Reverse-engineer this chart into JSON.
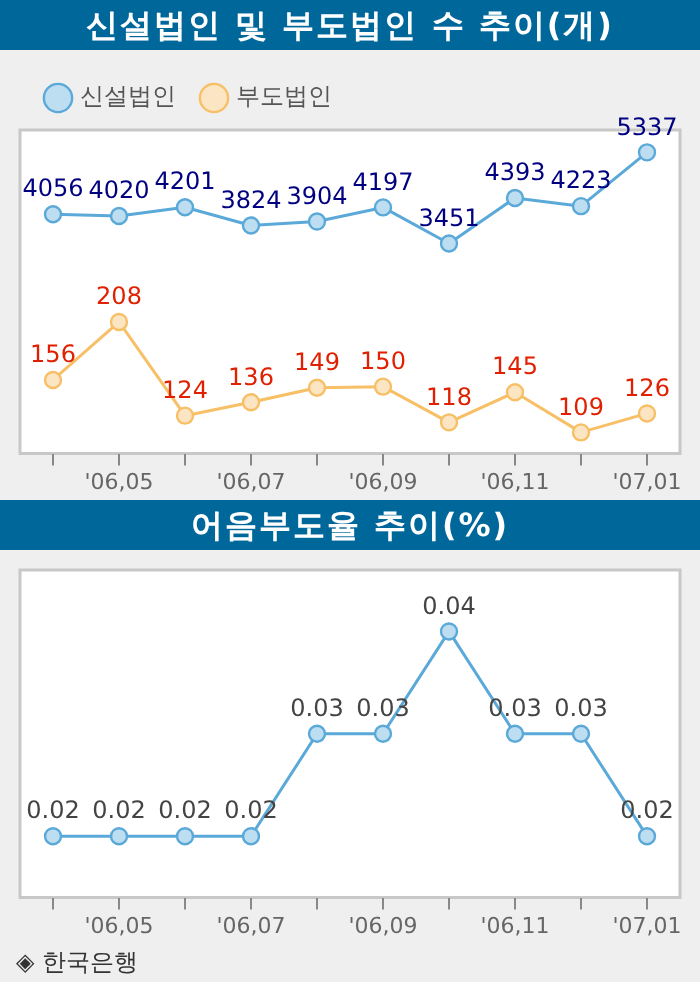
{
  "chart_data": [
    {
      "type": "line",
      "title": "신설법인 및 부도법인 수 추이(개)",
      "categories": [
        null,
        "'06,05",
        null,
        "'06,07",
        null,
        "'06,09",
        null,
        "'06,11",
        null,
        "'07,01"
      ],
      "series": [
        {
          "name": "신설법인",
          "color": "#5aa9d9",
          "values": [
            4056,
            4020,
            4201,
            3824,
            3904,
            4197,
            3451,
            4393,
            4223,
            5337
          ]
        },
        {
          "name": "부도법인",
          "color": "#f7bf66",
          "axis": "y2",
          "values": [
            156,
            208,
            124,
            136,
            149,
            150,
            118,
            145,
            109,
            126
          ]
        }
      ],
      "ylim": [
        -900,
        5800
      ],
      "y2lim": [
        90,
        380
      ],
      "data_labels": true,
      "legend": "top left",
      "marker": "circle",
      "grid": false,
      "tick_labels": "x"
    },
    {
      "type": "line",
      "title": "어음부도율 추이(%)",
      "categories": [
        null,
        "'06,05",
        null,
        "'06,07",
        null,
        "'06,09",
        null,
        "'06,11",
        null,
        "'07,01"
      ],
      "series": [
        {
          "color": "#5aa9d9",
          "values": [
            0.02,
            0.02,
            0.02,
            0.02,
            0.03,
            0.03,
            0.04,
            0.03,
            0.03,
            0.02
          ]
        }
      ],
      "data_labels": true,
      "legend": false,
      "marker": "circle",
      "grid": false,
      "tick_labels": "x",
      "annotations": [
        "◈ 한국은행"
      ]
    }
  ]
}
